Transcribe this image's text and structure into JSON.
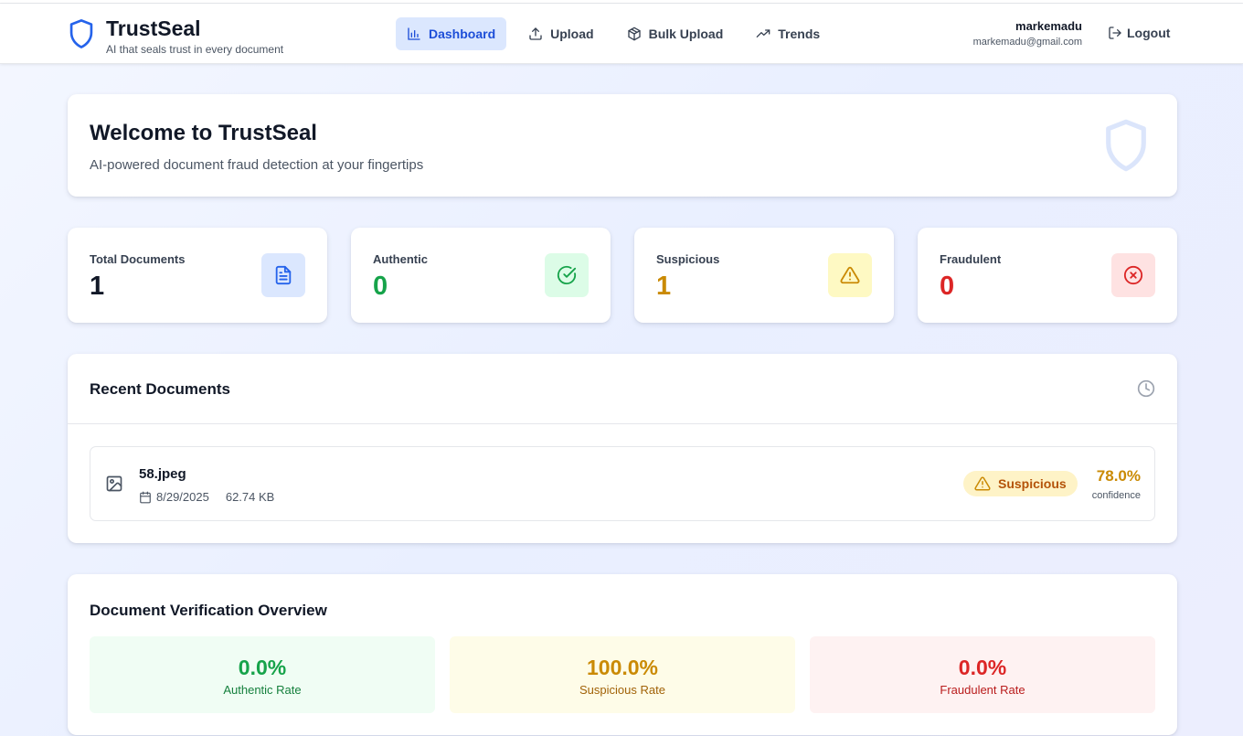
{
  "app": {
    "name": "TrustSeal",
    "tagline": "AI that seals trust in every document"
  },
  "nav": {
    "items": [
      {
        "label": "Dashboard",
        "icon": "bar-chart-icon",
        "active": true
      },
      {
        "label": "Upload",
        "icon": "upload-icon",
        "active": false
      },
      {
        "label": "Bulk Upload",
        "icon": "package-icon",
        "active": false
      },
      {
        "label": "Trends",
        "icon": "trending-up-icon",
        "active": false
      }
    ]
  },
  "user": {
    "name": "markemadu",
    "email": "markemadu@gmail.com",
    "logout_label": "Logout"
  },
  "welcome": {
    "title": "Welcome to TrustSeal",
    "subtitle": "AI-powered document fraud detection at your fingertips"
  },
  "stats": [
    {
      "label": "Total Documents",
      "value": "1",
      "color": "#111827",
      "icon": "file-text-icon",
      "icon_bg": "#dbe7fe",
      "icon_color": "#2563eb"
    },
    {
      "label": "Authentic",
      "value": "0",
      "color": "#16a34a",
      "icon": "check-circle-icon",
      "icon_bg": "#dcfce7",
      "icon_color": "#16a34a"
    },
    {
      "label": "Suspicious",
      "value": "1",
      "color": "#ca8a04",
      "icon": "alert-triangle-icon",
      "icon_bg": "#fef9c3",
      "icon_color": "#ca8a04"
    },
    {
      "label": "Fraudulent",
      "value": "0",
      "color": "#dc2626",
      "icon": "x-circle-icon",
      "icon_bg": "#fee2e2",
      "icon_color": "#dc2626"
    }
  ],
  "recent": {
    "title": "Recent Documents",
    "documents": [
      {
        "name": "58.jpeg",
        "date": "8/29/2025",
        "size": "62.74 KB",
        "status": "Suspicious",
        "confidence": "78.0%",
        "confidence_label": "confidence"
      }
    ]
  },
  "overview": {
    "title": "Document Verification Overview",
    "rates": [
      {
        "value": "0.0%",
        "label": "Authentic Rate",
        "bg": "#f0fdf4",
        "value_color": "#16a34a",
        "label_color": "#15803d"
      },
      {
        "value": "100.0%",
        "label": "Suspicious Rate",
        "bg": "#fefce8",
        "value_color": "#ca8a04",
        "label_color": "#a16207"
      },
      {
        "value": "0.0%",
        "label": "Fraudulent Rate",
        "bg": "#fef2f2",
        "value_color": "#dc2626",
        "label_color": "#b91c1c"
      }
    ]
  },
  "colors": {
    "accent": "#2563eb",
    "nav_active_bg": "#dbe7fe"
  }
}
